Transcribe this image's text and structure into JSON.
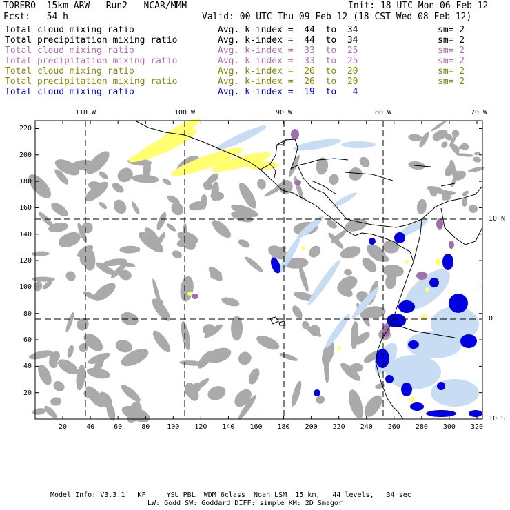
{
  "header": {
    "model": "TORERO  15km ARW   Run2   NCAR/MMM",
    "init": "Init: 18 UTC Mon 06 Feb 12",
    "fcst": "Fcst:   54 h",
    "valid": "Valid: 00 UTC Thu 09 Feb 12 (18 CST Wed 08 Feb 12)"
  },
  "legend": [
    {
      "field": "Total cloud mixing ratio",
      "kindex": "Avg. k-index =  44  to  34",
      "sm": "sm= 2",
      "color": "#000000"
    },
    {
      "field": "Total precipitation mixing ratio",
      "kindex": "Avg. k-index =  44  to  34",
      "sm": "sm= 2",
      "color": "#000000"
    },
    {
      "field": "Total cloud mixing ratio",
      "kindex": "Avg. k-index =  33  to  25",
      "sm": "sm= 2",
      "color": "#b070b0"
    },
    {
      "field": "Total precipitation mixing ratio",
      "kindex": "Avg. k-index =  33  to  25",
      "sm": "sm= 2",
      "color": "#b070b0"
    },
    {
      "field": "Total cloud mixing ratio",
      "kindex": "Avg. k-index =  26  to  20",
      "sm": "sm= 2",
      "color": "#8a8a00"
    },
    {
      "field": "Total precipitation mixing ratio",
      "kindex": "Avg. k-index =  26  to  20",
      "sm": "sm= 2",
      "color": "#8a8a00"
    },
    {
      "field": "Total cloud mixing ratio",
      "kindex": "Avg. k-index =  19  to   4",
      "sm": "",
      "color": "#0000e0"
    }
  ],
  "top_lon_labels": [
    "110 W",
    "100 W",
    "90 W",
    "80 W",
    "70 W"
  ],
  "right_lat_labels": [
    "10 N",
    "0",
    "10 S"
  ],
  "x_ticks": [
    "20",
    "40",
    "60",
    "80",
    "100",
    "120",
    "140",
    "160",
    "180",
    "200",
    "220",
    "240",
    "260",
    "280",
    "300",
    "320"
  ],
  "y_ticks": [
    "220",
    "200",
    "180",
    "160",
    "140",
    "120",
    "100",
    "80",
    "60",
    "40",
    "20"
  ],
  "footer": {
    "line1": "Model Info: V3.3.1   KF     YSU PBL  WDM 6class  Noah LSM  15 km,   44 levels,   34 sec",
    "line2": "LW: Godd SW: Goddard DIFF: simple KM: 2D Smagor"
  },
  "colors": {
    "gray_cloud": "#aaaaaa",
    "purple": "#a070a8",
    "yellow": "#ffff70",
    "light_blue": "#c8dcf4",
    "blue": "#0000e0"
  }
}
